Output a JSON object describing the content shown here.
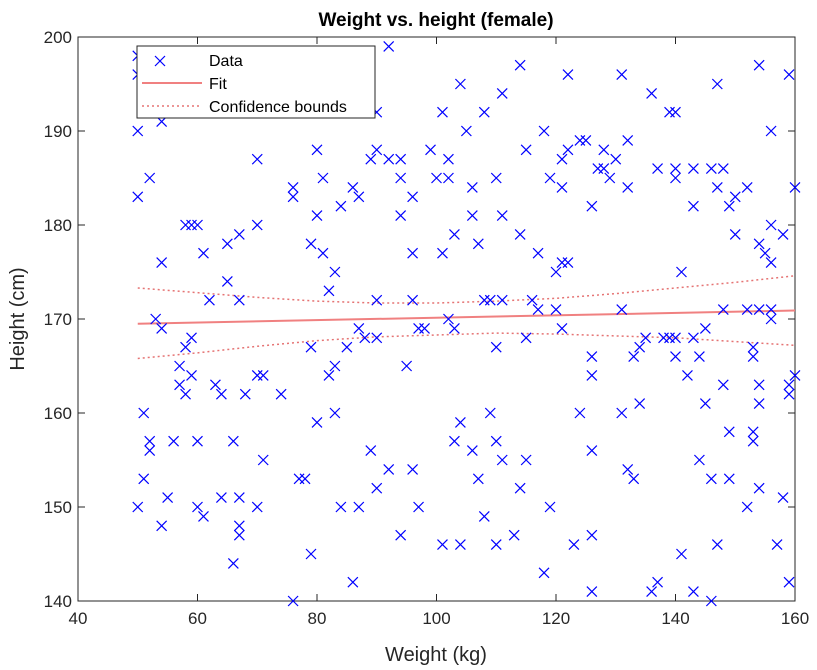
{
  "chart_data": {
    "type": "scatter",
    "title": "Weight vs. height (female)",
    "xlabel": "Weight (kg)",
    "ylabel": "Height (cm)",
    "xlim": [
      40,
      160
    ],
    "ylim": [
      140,
      200
    ],
    "xticks": [
      "40",
      "60",
      "80",
      "100",
      "120",
      "140",
      "160"
    ],
    "yticks": [
      "140",
      "150",
      "160",
      "170",
      "180",
      "190",
      "200"
    ],
    "grid": false,
    "legend_position": "top-left",
    "legend": [
      "Data",
      "Fit",
      "Confidence bounds"
    ],
    "colors": {
      "data": "#0000ff",
      "fit": "#f08080",
      "bounds": "#e57373",
      "axis": "#262626"
    },
    "series": [
      {
        "name": "Data",
        "marker": "x",
        "points": [
          [
            50,
            198
          ],
          [
            50,
            196
          ],
          [
            50,
            190
          ],
          [
            50,
            183
          ],
          [
            50,
            150
          ],
          [
            51,
            160
          ],
          [
            51,
            153
          ],
          [
            52,
            185
          ],
          [
            52,
            157
          ],
          [
            52,
            156
          ],
          [
            53,
            170
          ],
          [
            54,
            169
          ],
          [
            54,
            191
          ],
          [
            54,
            176
          ],
          [
            54,
            148
          ],
          [
            55,
            151
          ],
          [
            56,
            157
          ],
          [
            57,
            165
          ],
          [
            57,
            163
          ],
          [
            58,
            167
          ],
          [
            58,
            162
          ],
          [
            58,
            180
          ],
          [
            59,
            180
          ],
          [
            59,
            168
          ],
          [
            59,
            164
          ],
          [
            60,
            180
          ],
          [
            60,
            157
          ],
          [
            60,
            150
          ],
          [
            61,
            149
          ],
          [
            61,
            177
          ],
          [
            62,
            172
          ],
          [
            63,
            163
          ],
          [
            64,
            162
          ],
          [
            64,
            151
          ],
          [
            65,
            174
          ],
          [
            65,
            178
          ],
          [
            66,
            144
          ],
          [
            66,
            157
          ],
          [
            67,
            148
          ],
          [
            67,
            147
          ],
          [
            67,
            151
          ],
          [
            67,
            172
          ],
          [
            67,
            179
          ],
          [
            68,
            162
          ],
          [
            70,
            187
          ],
          [
            70,
            180
          ],
          [
            70,
            164
          ],
          [
            70,
            150
          ],
          [
            71,
            164
          ],
          [
            71,
            155
          ],
          [
            74,
            162
          ],
          [
            76,
            184
          ],
          [
            76,
            183
          ],
          [
            76,
            140
          ],
          [
            77,
            153
          ],
          [
            78,
            153
          ],
          [
            79,
            178
          ],
          [
            79,
            167
          ],
          [
            79,
            145
          ],
          [
            80,
            188
          ],
          [
            80,
            181
          ],
          [
            80,
            159
          ],
          [
            81,
            185
          ],
          [
            81,
            177
          ],
          [
            82,
            173
          ],
          [
            82,
            164
          ],
          [
            83,
            175
          ],
          [
            83,
            165
          ],
          [
            83,
            160
          ],
          [
            84,
            182
          ],
          [
            84,
            150
          ],
          [
            85,
            167
          ],
          [
            86,
            184
          ],
          [
            86,
            142
          ],
          [
            87,
            183
          ],
          [
            87,
            169
          ],
          [
            87,
            150
          ],
          [
            88,
            168
          ],
          [
            89,
            187
          ],
          [
            89,
            156
          ],
          [
            90,
            188
          ],
          [
            90,
            192
          ],
          [
            90,
            168
          ],
          [
            90,
            152
          ],
          [
            90,
            172
          ],
          [
            92,
            199
          ],
          [
            92,
            187
          ],
          [
            92,
            154
          ],
          [
            94,
            187
          ],
          [
            94,
            185
          ],
          [
            94,
            181
          ],
          [
            94,
            147
          ],
          [
            95,
            165
          ],
          [
            96,
            183
          ],
          [
            96,
            177
          ],
          [
            96,
            172
          ],
          [
            96,
            154
          ],
          [
            97,
            169
          ],
          [
            97,
            150
          ],
          [
            98,
            169
          ],
          [
            99,
            188
          ],
          [
            100,
            185
          ],
          [
            101,
            192
          ],
          [
            101,
            177
          ],
          [
            101,
            146
          ],
          [
            102,
            187
          ],
          [
            102,
            185
          ],
          [
            102,
            170
          ],
          [
            103,
            179
          ],
          [
            103,
            169
          ],
          [
            103,
            157
          ],
          [
            104,
            146
          ],
          [
            104,
            195
          ],
          [
            104,
            159
          ],
          [
            105,
            190
          ],
          [
            106,
            184
          ],
          [
            106,
            181
          ],
          [
            106,
            156
          ],
          [
            107,
            178
          ],
          [
            107,
            153
          ],
          [
            108,
            192
          ],
          [
            108,
            172
          ],
          [
            108,
            149
          ],
          [
            109,
            172
          ],
          [
            109,
            160
          ],
          [
            110,
            185
          ],
          [
            110,
            167
          ],
          [
            110,
            157
          ],
          [
            110,
            146
          ],
          [
            111,
            194
          ],
          [
            111,
            181
          ],
          [
            111,
            172
          ],
          [
            111,
            155
          ],
          [
            113,
            147
          ],
          [
            114,
            197
          ],
          [
            114,
            179
          ],
          [
            114,
            152
          ],
          [
            115,
            188
          ],
          [
            115,
            168
          ],
          [
            115,
            155
          ],
          [
            116,
            172
          ],
          [
            117,
            177
          ],
          [
            117,
            171
          ],
          [
            118,
            190
          ],
          [
            118,
            143
          ],
          [
            119,
            185
          ],
          [
            119,
            150
          ],
          [
            120,
            175
          ],
          [
            120,
            171
          ],
          [
            121,
            187
          ],
          [
            121,
            184
          ],
          [
            121,
            176
          ],
          [
            121,
            169
          ],
          [
            122,
            196
          ],
          [
            122,
            188
          ],
          [
            122,
            176
          ],
          [
            123,
            146
          ],
          [
            124,
            189
          ],
          [
            124,
            160
          ],
          [
            125,
            189
          ],
          [
            126,
            182
          ],
          [
            126,
            166
          ],
          [
            126,
            164
          ],
          [
            126,
            156
          ],
          [
            126,
            147
          ],
          [
            126,
            141
          ],
          [
            127,
            186
          ],
          [
            128,
            186
          ],
          [
            128,
            188
          ],
          [
            129,
            185
          ],
          [
            130,
            187
          ],
          [
            131,
            196
          ],
          [
            131,
            171
          ],
          [
            131,
            160
          ],
          [
            132,
            189
          ],
          [
            132,
            184
          ],
          [
            132,
            154
          ],
          [
            133,
            166
          ],
          [
            133,
            153
          ],
          [
            134,
            167
          ],
          [
            134,
            161
          ],
          [
            135,
            168
          ],
          [
            136,
            194
          ],
          [
            136,
            141
          ],
          [
            137,
            186
          ],
          [
            137,
            142
          ],
          [
            138,
            168
          ],
          [
            139,
            192
          ],
          [
            139,
            168
          ],
          [
            140,
            192
          ],
          [
            140,
            186
          ],
          [
            140,
            185
          ],
          [
            140,
            168
          ],
          [
            140,
            166
          ],
          [
            141,
            175
          ],
          [
            141,
            145
          ],
          [
            142,
            164
          ],
          [
            143,
            186
          ],
          [
            143,
            182
          ],
          [
            143,
            168
          ],
          [
            143,
            141
          ],
          [
            144,
            166
          ],
          [
            144,
            155
          ],
          [
            145,
            169
          ],
          [
            145,
            161
          ],
          [
            146,
            186
          ],
          [
            146,
            153
          ],
          [
            146,
            140
          ],
          [
            147,
            195
          ],
          [
            147,
            184
          ],
          [
            147,
            146
          ],
          [
            148,
            186
          ],
          [
            148,
            171
          ],
          [
            148,
            163
          ],
          [
            149,
            182
          ],
          [
            149,
            158
          ],
          [
            149,
            153
          ],
          [
            150,
            183
          ],
          [
            150,
            179
          ],
          [
            152,
            184
          ],
          [
            152,
            171
          ],
          [
            152,
            150
          ],
          [
            153,
            167
          ],
          [
            153,
            166
          ],
          [
            153,
            158
          ],
          [
            153,
            157
          ],
          [
            154,
            197
          ],
          [
            154,
            178
          ],
          [
            154,
            171
          ],
          [
            154,
            163
          ],
          [
            154,
            161
          ],
          [
            154,
            152
          ],
          [
            155,
            177
          ],
          [
            156,
            190
          ],
          [
            156,
            180
          ],
          [
            156,
            176
          ],
          [
            156,
            171
          ],
          [
            156,
            170
          ],
          [
            157,
            146
          ],
          [
            158,
            179
          ],
          [
            158,
            151
          ],
          [
            159,
            196
          ],
          [
            159,
            163
          ],
          [
            159,
            162
          ],
          [
            159,
            142
          ],
          [
            160,
            184
          ],
          [
            160,
            164
          ]
        ]
      },
      {
        "name": "Fit",
        "line": "solid",
        "x": [
          50,
          160
        ],
        "y": [
          169.5,
          170.9
        ]
      },
      {
        "name": "Confidence bounds",
        "line": "dotted",
        "x": [
          50,
          60,
          70,
          80,
          90,
          100,
          110,
          120,
          130,
          140,
          150,
          160
        ],
        "upper": [
          173.3,
          172.8,
          172.3,
          171.9,
          171.7,
          171.7,
          171.9,
          172.2,
          172.7,
          173.3,
          173.9,
          174.6
        ],
        "lower": [
          165.8,
          166.4,
          167.1,
          167.7,
          168.1,
          168.3,
          168.5,
          168.4,
          168.2,
          168.0,
          167.6,
          167.2
        ]
      }
    ]
  }
}
